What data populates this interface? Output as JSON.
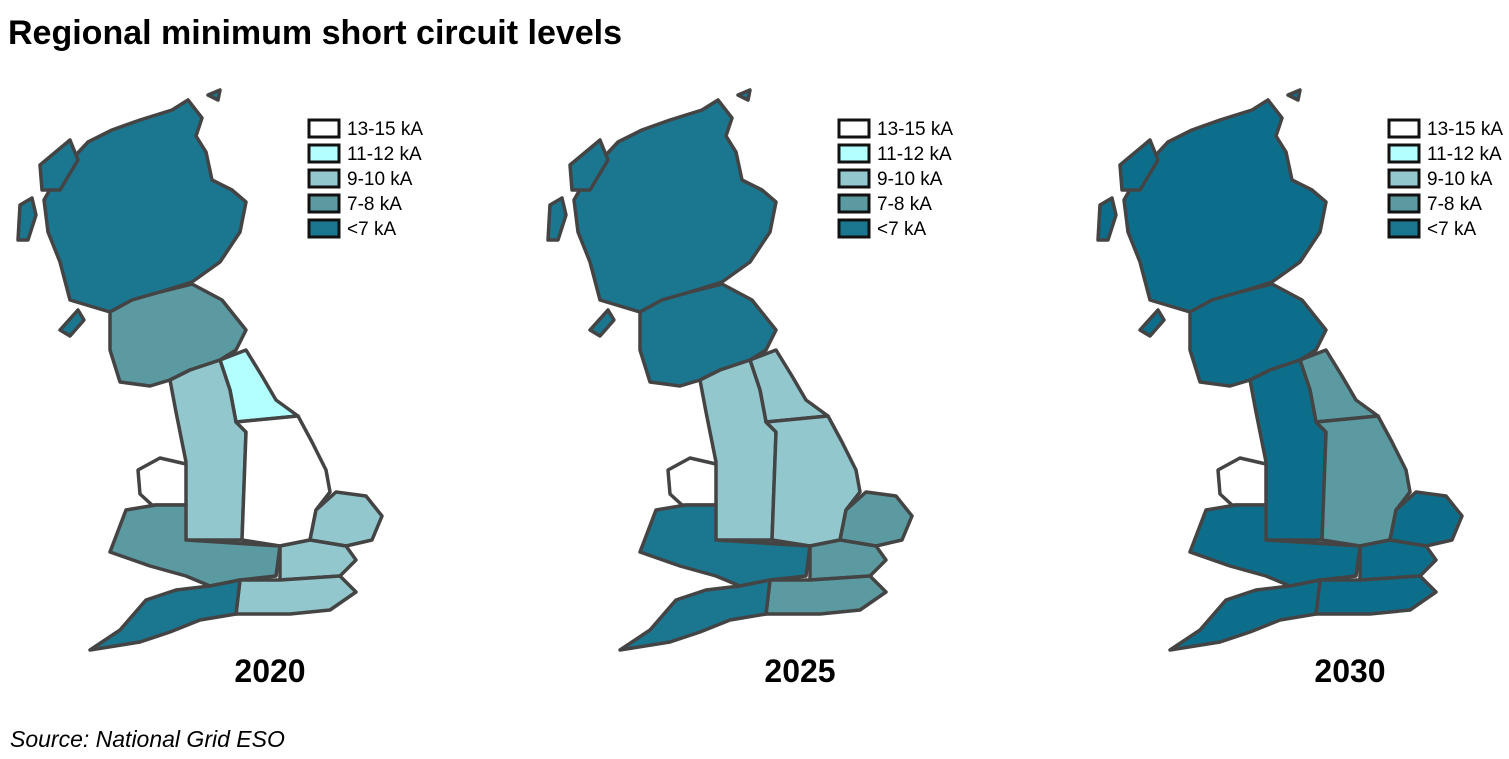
{
  "title": "Regional minimum short circuit levels",
  "source": "Source: National Grid ESO",
  "legend": [
    {
      "label": "13-15 kA",
      "color": "#ffffff"
    },
    {
      "label": "11-12 kA",
      "color": "#b3ffff"
    },
    {
      "label": "9-10 kA",
      "color": "#92c8cd"
    },
    {
      "label": "7-8 kA",
      "color": "#5b9aa0"
    },
    {
      "label": "<7 kA",
      "color": "#1b7690"
    }
  ],
  "maps": [
    {
      "label": "2020",
      "region_colors": [
        "#1b7690",
        "#5b9aa0",
        "#b3ffff",
        "#92c8cd",
        "#ffffff",
        "#92c8cd",
        "#ffffff",
        "#5b9aa0",
        "#92c8cd",
        "#92c8cd",
        "#1b7690"
      ]
    },
    {
      "label": "2025",
      "region_colors": [
        "#1b7690",
        "#1b7690",
        "#92c8cd",
        "#92c8cd",
        "#92c8cd",
        "#5b9aa0",
        "#ffffff",
        "#1b7690",
        "#5b9aa0",
        "#5b9aa0",
        "#1b7690"
      ]
    },
    {
      "label": "2030",
      "region_colors": [
        "#0d6e8c",
        "#0d6e8c",
        "#5b9aa0",
        "#0d6e8c",
        "#5b9aa0",
        "#0d6e8c",
        "#ffffff",
        "#0d6e8c",
        "#0d6e8c",
        "#0d6e8c",
        "#0d6e8c"
      ]
    }
  ]
}
